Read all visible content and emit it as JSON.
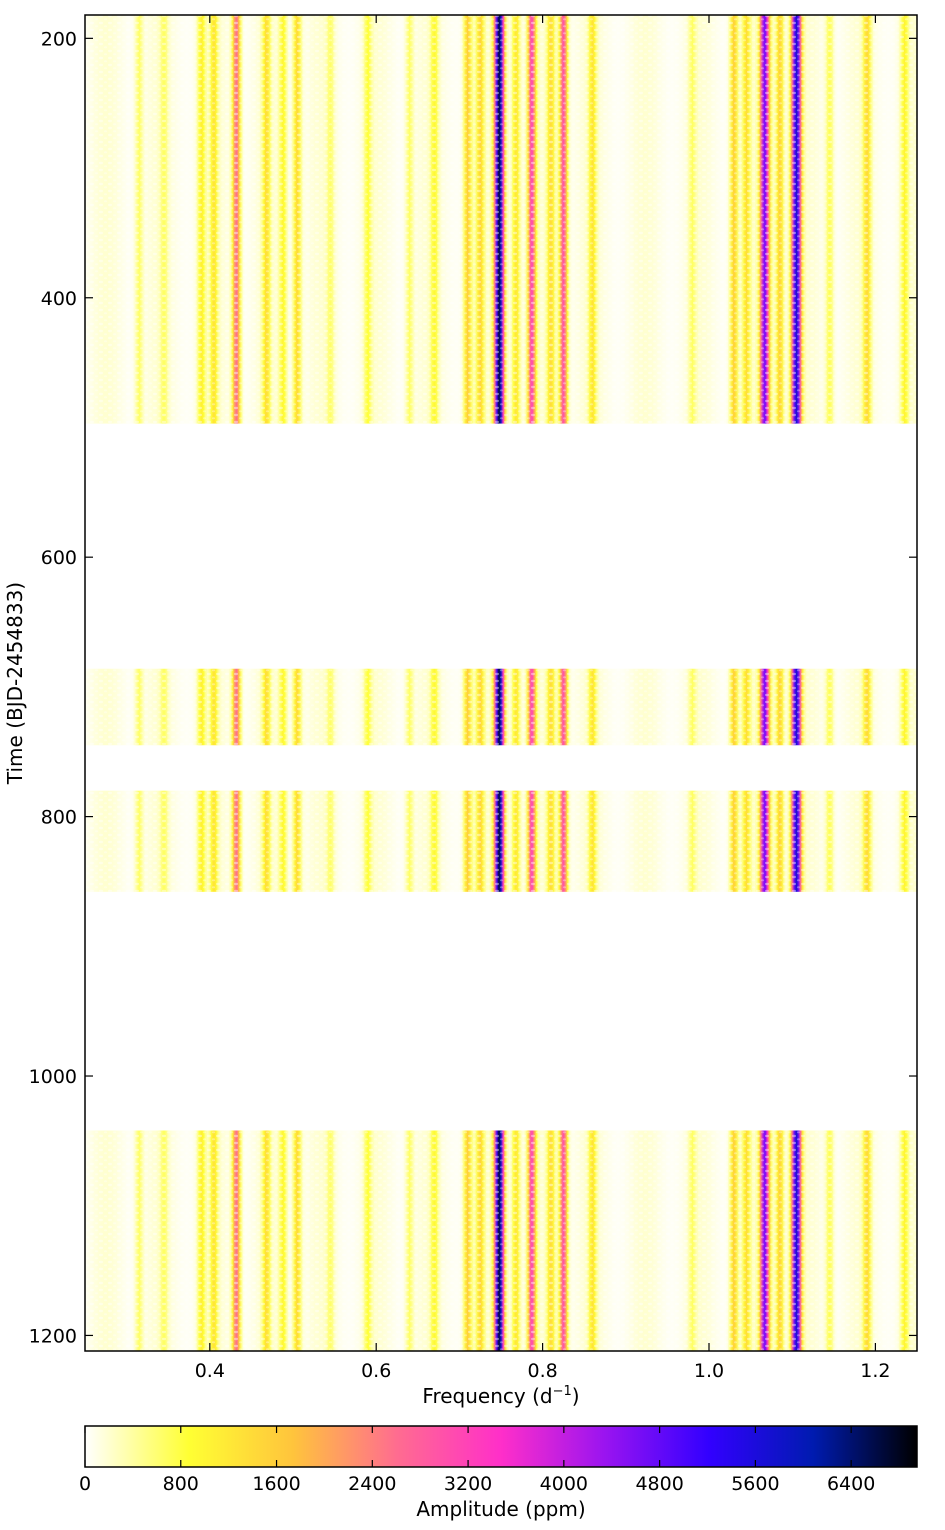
{
  "chart_data": {
    "type": "heatmap",
    "title": "",
    "xlabel": "Frequency (d",
    "xlabel_sup": "−1",
    "xlabel_close": ")",
    "ylabel": "Time (BJD-2454833)",
    "xlim": [
      0.25,
      1.25
    ],
    "ylim": [
      1212,
      182
    ],
    "xticks": [
      0.4,
      0.6,
      0.8,
      1.0,
      1.2
    ],
    "xtick_labels": [
      "0.4",
      "0.6",
      "0.8",
      "1.0",
      "1.2"
    ],
    "yticks": [
      200,
      400,
      600,
      800,
      1000,
      1200
    ],
    "ytick_labels": [
      "200",
      "400",
      "600",
      "800",
      "1000",
      "1200"
    ],
    "time_segments": [
      [
        182,
        497
      ],
      [
        686,
        745
      ],
      [
        780,
        858
      ],
      [
        1042,
        1212
      ]
    ],
    "frequency_peaks": [
      {
        "f": 0.315,
        "amp": 600
      },
      {
        "f": 0.345,
        "amp": 500
      },
      {
        "f": 0.39,
        "amp": 1000
      },
      {
        "f": 0.405,
        "amp": 1100
      },
      {
        "f": 0.432,
        "amp": 2600
      },
      {
        "f": 0.468,
        "amp": 1200
      },
      {
        "f": 0.488,
        "amp": 900
      },
      {
        "f": 0.505,
        "amp": 1400
      },
      {
        "f": 0.545,
        "amp": 500
      },
      {
        "f": 0.59,
        "amp": 700
      },
      {
        "f": 0.64,
        "amp": 600
      },
      {
        "f": 0.67,
        "amp": 800
      },
      {
        "f": 0.71,
        "amp": 1500
      },
      {
        "f": 0.725,
        "amp": 1300
      },
      {
        "f": 0.748,
        "amp": 6600
      },
      {
        "f": 0.768,
        "amp": 1200
      },
      {
        "f": 0.787,
        "amp": 3000
      },
      {
        "f": 0.81,
        "amp": 1300
      },
      {
        "f": 0.825,
        "amp": 3000
      },
      {
        "f": 0.86,
        "amp": 1100
      },
      {
        "f": 0.98,
        "amp": 500
      },
      {
        "f": 1.03,
        "amp": 1500
      },
      {
        "f": 1.045,
        "amp": 1200
      },
      {
        "f": 1.067,
        "amp": 4600
      },
      {
        "f": 1.085,
        "amp": 1500
      },
      {
        "f": 1.105,
        "amp": 5600
      },
      {
        "f": 1.145,
        "amp": 700
      },
      {
        "f": 1.19,
        "amp": 1300
      },
      {
        "f": 1.235,
        "amp": 900
      }
    ],
    "colorbar": {
      "label": "Amplitude (ppm)",
      "range": [
        0,
        6950
      ],
      "ticks": [
        0,
        800,
        1600,
        2400,
        3200,
        4000,
        4800,
        5600,
        6400
      ],
      "tick_labels": [
        "0",
        "800",
        "1600",
        "2400",
        "3200",
        "4000",
        "4800",
        "5600",
        "6400"
      ],
      "colormap": "gnuplot2_r",
      "stops": [
        "#ffffff",
        "#ffff33",
        "#ffc43c",
        "#ff6c90",
        "#ff2fc9",
        "#9a14f0",
        "#3200ff",
        "#001bb0",
        "#000000"
      ]
    }
  }
}
